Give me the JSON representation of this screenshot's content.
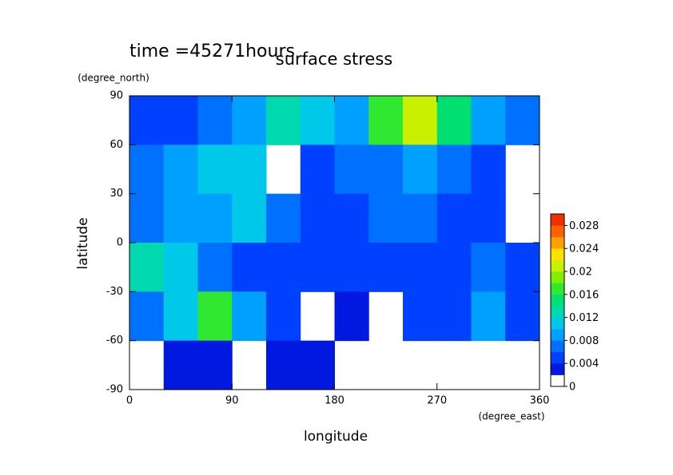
{
  "chart_data": {
    "type": "contour",
    "title": "surface stress",
    "subtitle": "time =45271hours",
    "xlabel": "longitude",
    "xunits": "(degree_east)",
    "ylabel": "latitude",
    "yunits": "(degree_north)",
    "xlim": [
      0,
      360
    ],
    "xticks": [
      0,
      90,
      180,
      270,
      360
    ],
    "ylim": [
      -90,
      90
    ],
    "yticks": [
      -90,
      -60,
      -30,
      0,
      30,
      60,
      90
    ],
    "x": [
      15,
      45,
      75,
      105,
      135,
      165,
      195,
      225,
      255,
      285,
      315,
      345
    ],
    "y": [
      75,
      45,
      15,
      -15,
      -45,
      -75
    ],
    "z": [
      [
        0.004,
        0.004,
        0.006,
        0.008,
        0.012,
        0.01,
        0.008,
        0.016,
        0.02,
        0.014,
        0.008,
        0.006
      ],
      [
        0.006,
        0.008,
        0.01,
        0.01,
        null,
        0.004,
        0.006,
        0.006,
        0.008,
        0.006,
        0.004,
        null
      ],
      [
        0.006,
        0.008,
        0.008,
        0.01,
        0.006,
        0.004,
        0.004,
        0.006,
        0.006,
        0.004,
        0.004,
        null
      ],
      [
        0.012,
        0.01,
        0.006,
        0.004,
        0.004,
        0.004,
        0.004,
        0.004,
        0.004,
        0.004,
        0.006,
        0.004
      ],
      [
        0.006,
        0.01,
        0.016,
        0.008,
        0.004,
        null,
        0.002,
        null,
        0.004,
        0.004,
        0.008,
        0.004
      ],
      [
        null,
        0.002,
        0.002,
        null,
        0.002,
        0.002,
        null,
        null,
        null,
        null,
        null,
        null
      ]
    ],
    "colorbar": {
      "lim": [
        0,
        0.03
      ],
      "step": 0.002,
      "ticks": [
        0,
        0.004,
        0.008,
        0.012,
        0.016,
        0.02,
        0.024,
        0.028
      ],
      "colors": [
        "#ffffff",
        "#0018e0",
        "#0040ff",
        "#0070ff",
        "#00a0ff",
        "#00c8e8",
        "#00d8b0",
        "#00e070",
        "#30e830",
        "#80f000",
        "#c8f000",
        "#ffe000",
        "#ffa000",
        "#ff6000",
        "#f03000"
      ]
    }
  }
}
